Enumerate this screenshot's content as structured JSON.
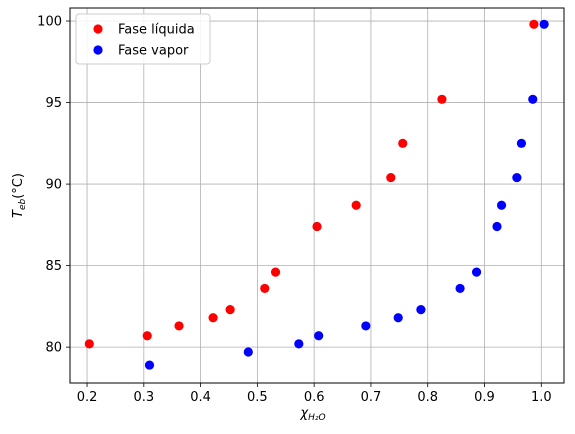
{
  "chart_data": {
    "type": "scatter",
    "xlabel": "χ",
    "xlabel_sub": "H₂O",
    "ylabel": "T",
    "ylabel_sub": "eb",
    "ylabel_unit": "(°C)",
    "xlim": [
      0.17,
      1.04
    ],
    "ylim": [
      77.8,
      100.8
    ],
    "x_ticks": [
      0.2,
      0.3,
      0.4,
      0.5,
      0.6,
      0.7,
      0.8,
      0.9,
      1.0
    ],
    "x_tick_labels": [
      "0.2",
      "0.3",
      "0.4",
      "0.5",
      "0.6",
      "0.7",
      "0.8",
      "0.9",
      "1.0"
    ],
    "y_ticks": [
      80,
      85,
      90,
      95,
      100
    ],
    "y_tick_labels": [
      "80",
      "85",
      "90",
      "95",
      "100"
    ],
    "grid": true,
    "legend_position": "top-left",
    "series": [
      {
        "name": "Fase líquida",
        "color": "#ff0000",
        "x": [
          0.204,
          0.306,
          0.362,
          0.422,
          0.452,
          0.513,
          0.532,
          0.605,
          0.674,
          0.735,
          0.756,
          0.825,
          0.987
        ],
        "y": [
          80.2,
          80.7,
          81.3,
          81.8,
          82.3,
          83.6,
          84.6,
          87.4,
          88.7,
          90.4,
          92.5,
          95.2,
          99.8
        ]
      },
      {
        "name": "Fase vapor",
        "color": "#0000ff",
        "x": [
          0.31,
          0.484,
          0.573,
          0.608,
          0.691,
          0.748,
          0.788,
          0.857,
          0.886,
          0.922,
          0.93,
          0.957,
          0.965,
          0.985,
          1.005
        ],
        "y": [
          78.9,
          79.7,
          80.2,
          80.7,
          81.3,
          81.8,
          82.3,
          83.6,
          84.6,
          87.4,
          88.7,
          90.4,
          92.5,
          95.2,
          99.8
        ]
      }
    ]
  }
}
